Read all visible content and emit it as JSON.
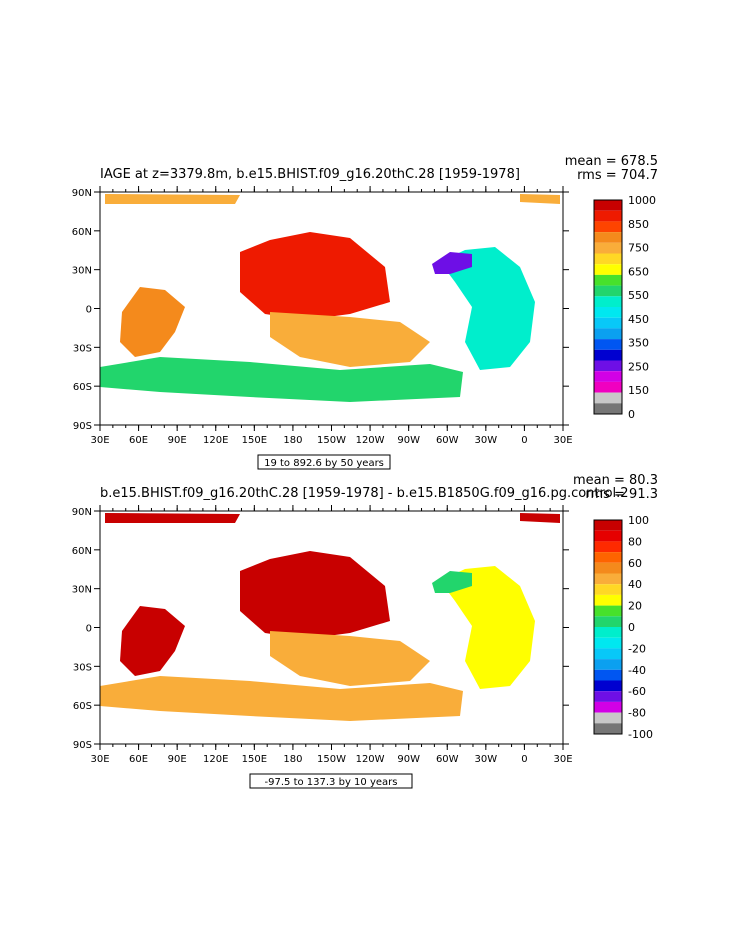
{
  "chart_data": [
    {
      "type": "heatmap",
      "title": "IAGE at z=3379.8m, b.e15.BHIST.f09_g16.20thC.28  [1959-1978]",
      "stats": {
        "mean": "mean = 678.5",
        "rms": "rms = 704.7"
      },
      "contour_info": "19 to 892.6 by 50 years",
      "x_ticks": [
        "30E",
        "60E",
        "90E",
        "120E",
        "150E",
        "180",
        "150W",
        "120W",
        "90W",
        "60W",
        "30W",
        "0",
        "30E"
      ],
      "y_ticks": [
        "90N",
        "60N",
        "30N",
        "0",
        "30S",
        "60S",
        "90S"
      ],
      "colorbar": {
        "labels": [
          "1000",
          "850",
          "750",
          "650",
          "550",
          "450",
          "350",
          "250",
          "150",
          "0"
        ],
        "colors": [
          "#c80000",
          "#ee1a00",
          "#fe4400",
          "#f48a1c",
          "#f9ad3a",
          "#ffd825",
          "#ffff00",
          "#47e12b",
          "#22d56c",
          "#00eecc",
          "#00e8f0",
          "#08c8f8",
          "#0ba0f0",
          "#0056f2",
          "#0000d0",
          "#6e0fe6",
          "#d200e6",
          "#f000c0",
          "#c8c8c8",
          "#767676"
        ]
      },
      "regions": [
        {
          "name": "north-pacific",
          "color": "#ee1a00"
        },
        {
          "name": "south-pacific",
          "color": "#f9ad3a"
        },
        {
          "name": "indian-ocean",
          "color": "#f48a1c"
        },
        {
          "name": "southern-ocean",
          "color": "#22d56c"
        },
        {
          "name": "atlantic",
          "color": "#00eecc"
        },
        {
          "name": "arctic",
          "color": "#f9ad3a"
        },
        {
          "name": "labrador",
          "color": "#6e0fe6"
        }
      ]
    },
    {
      "type": "heatmap",
      "title": "b.e15.BHIST.f09_g16.20thC.28  [1959-1978]  -  b.e15.B1850G.f09_g16.pg.control.2",
      "stats": {
        "mean": "mean = 80.3",
        "rms": "rms = 91.3"
      },
      "contour_info": "-97.5 to 137.3 by 10 years",
      "x_ticks": [
        "30E",
        "60E",
        "90E",
        "120E",
        "150E",
        "180",
        "150W",
        "120W",
        "90W",
        "60W",
        "30W",
        "0",
        "30E"
      ],
      "y_ticks": [
        "90N",
        "60N",
        "30N",
        "0",
        "30S",
        "60S",
        "90S"
      ],
      "colorbar": {
        "labels": [
          "100",
          "80",
          "60",
          "40",
          "20",
          "0",
          "-20",
          "-40",
          "-60",
          "-80",
          "-100"
        ],
        "colors": [
          "#c80000",
          "#e60000",
          "#fe2a00",
          "#fe6400",
          "#f48a1c",
          "#f9ad3a",
          "#ffd825",
          "#ffff00",
          "#47e12b",
          "#22d56c",
          "#00eecc",
          "#00e8f0",
          "#08c8f8",
          "#0ba0f0",
          "#0056f2",
          "#0000d0",
          "#6e0fe6",
          "#d200e6",
          "#c8c8c8",
          "#767676"
        ]
      },
      "regions": [
        {
          "name": "north-pacific",
          "color": "#c80000"
        },
        {
          "name": "south-pacific",
          "color": "#f9ad3a"
        },
        {
          "name": "indian-ocean",
          "color": "#c80000"
        },
        {
          "name": "southern-ocean",
          "color": "#f9ad3a"
        },
        {
          "name": "atlantic",
          "color": "#ffff00"
        },
        {
          "name": "arctic",
          "color": "#c80000"
        },
        {
          "name": "labrador",
          "color": "#22d56c"
        }
      ]
    }
  ]
}
